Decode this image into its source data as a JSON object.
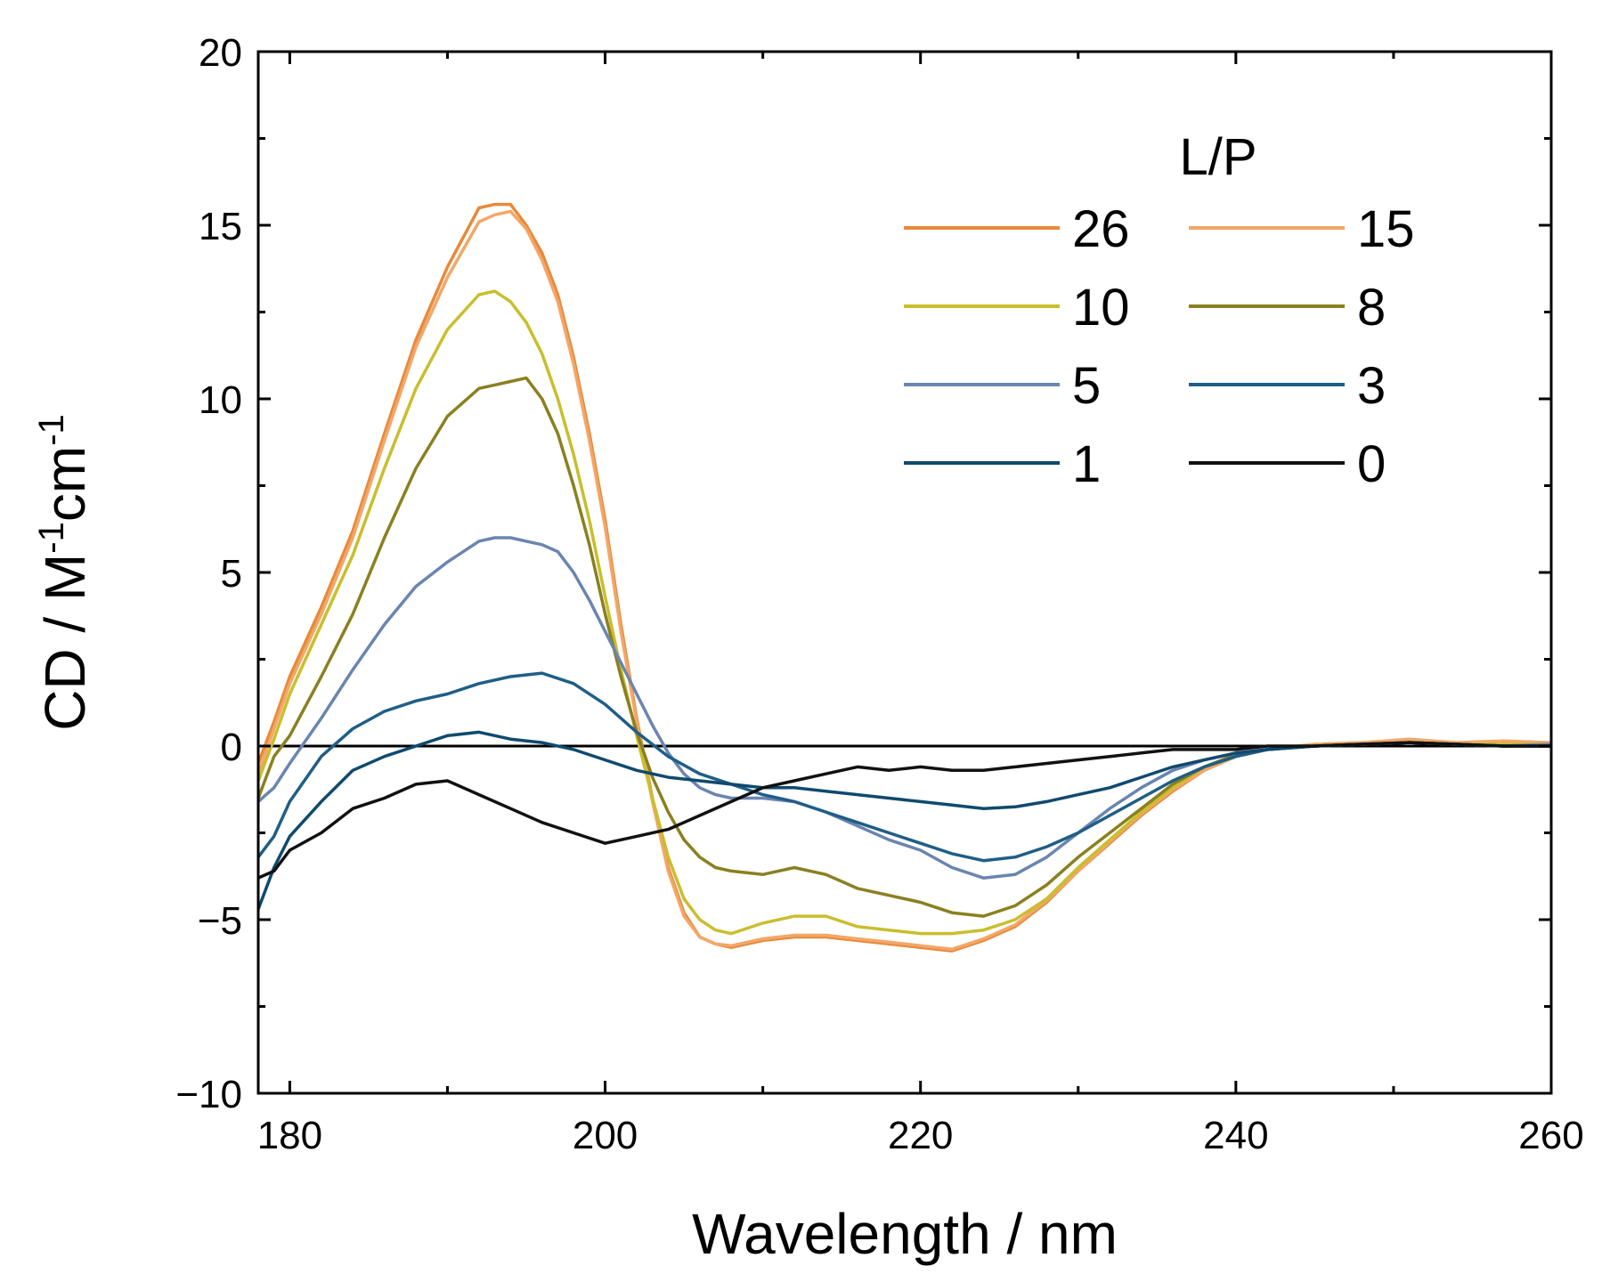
{
  "chart_data": {
    "type": "line",
    "title": "",
    "xlabel": "Wavelength / nm",
    "ylabel": {
      "main": "CD / M",
      "sup1": "-1",
      "mid": "cm",
      "sup2": "-1"
    },
    "xlim": [
      178,
      260
    ],
    "ylim": [
      -10,
      20
    ],
    "xticks": [
      180,
      200,
      220,
      240,
      260
    ],
    "yticks": [
      -10,
      -5,
      0,
      5,
      10,
      15,
      20
    ],
    "ytick_labels": [
      "−10",
      "−5",
      "0",
      "5",
      "10",
      "15",
      "20"
    ],
    "zero_line": true,
    "legend": {
      "title": "L/P",
      "position": "top-right",
      "columns": 2
    },
    "series": [
      {
        "name": "26",
        "color": "#E8893A",
        "x": [
          178,
          179,
          180,
          182,
          184,
          186,
          188,
          190,
          192,
          193,
          194,
          195,
          196,
          197,
          198,
          199,
          200,
          201,
          202,
          203,
          204,
          205,
          206,
          207,
          208,
          210,
          212,
          214,
          216,
          218,
          220,
          222,
          224,
          226,
          228,
          230,
          232,
          234,
          236,
          238,
          240,
          242,
          245,
          248,
          251,
          254,
          257,
          260
        ],
        "y": [
          -0.5,
          0.7,
          2.0,
          4.0,
          6.2,
          9.0,
          11.7,
          13.8,
          15.5,
          15.6,
          15.6,
          15.0,
          14.2,
          13.0,
          11.2,
          9.0,
          6.5,
          3.5,
          0.8,
          -1.5,
          -3.5,
          -4.8,
          -5.5,
          -5.7,
          -5.8,
          -5.6,
          -5.5,
          -5.5,
          -5.6,
          -5.7,
          -5.8,
          -5.9,
          -5.6,
          -5.2,
          -4.5,
          -3.6,
          -2.8,
          -2.0,
          -1.3,
          -0.7,
          -0.3,
          -0.1,
          0.05,
          0.1,
          0.15,
          0.1,
          0.1,
          0.1
        ]
      },
      {
        "name": "15",
        "color": "#F2A768",
        "x": [
          178,
          179,
          180,
          182,
          184,
          186,
          188,
          190,
          192,
          193,
          194,
          195,
          196,
          197,
          198,
          199,
          200,
          201,
          202,
          203,
          204,
          205,
          206,
          207,
          208,
          210,
          212,
          214,
          216,
          218,
          220,
          222,
          224,
          226,
          228,
          230,
          232,
          234,
          236,
          238,
          240,
          242,
          245,
          248,
          251,
          254,
          257,
          260
        ],
        "y": [
          -0.8,
          0.5,
          1.8,
          3.8,
          6.0,
          8.8,
          11.5,
          13.5,
          15.1,
          15.3,
          15.4,
          14.9,
          14.0,
          12.8,
          11.0,
          8.8,
          6.3,
          3.3,
          0.7,
          -1.6,
          -3.6,
          -4.9,
          -5.5,
          -5.7,
          -5.75,
          -5.55,
          -5.45,
          -5.45,
          -5.55,
          -5.65,
          -5.75,
          -5.85,
          -5.55,
          -5.15,
          -4.45,
          -3.6,
          -2.75,
          -1.95,
          -1.25,
          -0.7,
          -0.3,
          -0.1,
          0.05,
          0.1,
          0.2,
          0.1,
          0.15,
          0.1
        ]
      },
      {
        "name": "10",
        "color": "#C9BE2E",
        "x": [
          178,
          179,
          180,
          182,
          184,
          186,
          188,
          190,
          192,
          193,
          194,
          195,
          196,
          197,
          198,
          199,
          200,
          201,
          202,
          203,
          204,
          205,
          206,
          207,
          208,
          210,
          212,
          214,
          216,
          218,
          220,
          222,
          224,
          226,
          228,
          230,
          232,
          234,
          236,
          238,
          240,
          242,
          245,
          248,
          251,
          254,
          257,
          260
        ],
        "y": [
          -1.0,
          0.2,
          1.5,
          3.5,
          5.5,
          8.0,
          10.3,
          12.0,
          13.0,
          13.1,
          12.8,
          12.2,
          11.3,
          10.0,
          8.4,
          6.5,
          4.3,
          2.2,
          0.3,
          -1.5,
          -3.2,
          -4.4,
          -5.0,
          -5.3,
          -5.4,
          -5.1,
          -4.9,
          -4.9,
          -5.2,
          -5.3,
          -5.4,
          -5.4,
          -5.3,
          -5.0,
          -4.4,
          -3.5,
          -2.7,
          -1.9,
          -1.2,
          -0.6,
          -0.25,
          -0.1,
          0.0,
          0.05,
          0.1,
          0.05,
          0.05,
          0.05
        ]
      },
      {
        "name": "8",
        "color": "#8A8020",
        "x": [
          178,
          179,
          180,
          182,
          184,
          186,
          188,
          190,
          192,
          193,
          194,
          195,
          196,
          197,
          198,
          199,
          200,
          201,
          202,
          203,
          204,
          205,
          206,
          207,
          208,
          210,
          212,
          214,
          216,
          218,
          220,
          222,
          224,
          226,
          228,
          230,
          232,
          234,
          236,
          238,
          240,
          242,
          245,
          248,
          251,
          254,
          257,
          260
        ],
        "y": [
          -1.5,
          -0.3,
          0.3,
          2.0,
          3.8,
          6.0,
          8.0,
          9.5,
          10.3,
          10.4,
          10.5,
          10.6,
          10.0,
          9.0,
          7.5,
          5.8,
          3.8,
          2.0,
          0.4,
          -0.9,
          -1.9,
          -2.7,
          -3.2,
          -3.5,
          -3.6,
          -3.7,
          -3.5,
          -3.7,
          -4.1,
          -4.3,
          -4.5,
          -4.8,
          -4.9,
          -4.6,
          -4.0,
          -3.2,
          -2.5,
          -1.8,
          -1.1,
          -0.6,
          -0.25,
          -0.1,
          0.0,
          0.05,
          0.1,
          0.05,
          0.0,
          0.05
        ]
      },
      {
        "name": "5",
        "color": "#6A85B0",
        "x": [
          178,
          179,
          180,
          182,
          184,
          186,
          188,
          190,
          192,
          193,
          194,
          195,
          196,
          197,
          198,
          199,
          200,
          201,
          202,
          203,
          204,
          205,
          206,
          207,
          208,
          210,
          212,
          214,
          216,
          218,
          220,
          222,
          224,
          226,
          228,
          230,
          232,
          234,
          236,
          238,
          240,
          242,
          245,
          248,
          251,
          254,
          257,
          260
        ],
        "y": [
          -1.6,
          -1.2,
          -0.5,
          0.8,
          2.2,
          3.5,
          4.6,
          5.3,
          5.9,
          6.0,
          6.0,
          5.9,
          5.8,
          5.6,
          5.0,
          4.2,
          3.3,
          2.4,
          1.5,
          0.6,
          -0.2,
          -0.8,
          -1.2,
          -1.4,
          -1.5,
          -1.5,
          -1.6,
          -1.9,
          -2.3,
          -2.7,
          -3.0,
          -3.5,
          -3.8,
          -3.7,
          -3.2,
          -2.5,
          -1.8,
          -1.2,
          -0.7,
          -0.4,
          -0.2,
          -0.1,
          0.0,
          0.05,
          0.1,
          0.05,
          0.0,
          0.05
        ]
      },
      {
        "name": "3",
        "color": "#1F5E86",
        "x": [
          178,
          179,
          180,
          182,
          184,
          186,
          188,
          190,
          192,
          194,
          196,
          198,
          200,
          202,
          204,
          206,
          208,
          210,
          212,
          214,
          216,
          218,
          220,
          222,
          224,
          226,
          228,
          230,
          232,
          234,
          236,
          238,
          240,
          242,
          245,
          248,
          251,
          254,
          257,
          260
        ],
        "y": [
          -3.2,
          -2.6,
          -1.6,
          -0.3,
          0.5,
          1.0,
          1.3,
          1.5,
          1.8,
          2.0,
          2.1,
          1.8,
          1.2,
          0.4,
          -0.3,
          -0.8,
          -1.1,
          -1.4,
          -1.6,
          -1.9,
          -2.2,
          -2.5,
          -2.8,
          -3.1,
          -3.3,
          -3.2,
          -2.9,
          -2.5,
          -2.0,
          -1.5,
          -1.0,
          -0.6,
          -0.3,
          -0.1,
          0.0,
          0.05,
          0.1,
          0.05,
          0.0,
          0.0
        ]
      },
      {
        "name": "1",
        "color": "#0F4A6E",
        "x": [
          178,
          179,
          180,
          182,
          184,
          186,
          188,
          190,
          192,
          194,
          196,
          198,
          200,
          202,
          204,
          206,
          208,
          210,
          212,
          214,
          216,
          218,
          220,
          222,
          224,
          226,
          228,
          230,
          232,
          234,
          236,
          238,
          240,
          242,
          245,
          248,
          251,
          254,
          257,
          260
        ],
        "y": [
          -4.7,
          -3.5,
          -2.6,
          -1.6,
          -0.7,
          -0.3,
          0.0,
          0.3,
          0.4,
          0.2,
          0.1,
          -0.1,
          -0.4,
          -0.7,
          -0.9,
          -1.0,
          -1.1,
          -1.2,
          -1.2,
          -1.3,
          -1.4,
          -1.5,
          -1.6,
          -1.7,
          -1.8,
          -1.75,
          -1.6,
          -1.4,
          -1.2,
          -0.9,
          -0.6,
          -0.4,
          -0.2,
          -0.1,
          0.0,
          0.05,
          0.1,
          0.05,
          0.0,
          0.0
        ]
      },
      {
        "name": "0",
        "color": "#111111",
        "x": [
          178,
          179,
          180,
          182,
          184,
          186,
          188,
          190,
          192,
          194,
          196,
          198,
          200,
          202,
          204,
          206,
          208,
          210,
          212,
          214,
          216,
          218,
          220,
          222,
          224,
          226,
          228,
          230,
          232,
          234,
          236,
          238,
          240,
          242,
          245,
          248,
          251,
          254,
          257,
          260
        ],
        "y": [
          -3.8,
          -3.6,
          -3.0,
          -2.5,
          -1.8,
          -1.5,
          -1.1,
          -1.0,
          -1.4,
          -1.8,
          -2.2,
          -2.5,
          -2.8,
          -2.6,
          -2.4,
          -2.0,
          -1.6,
          -1.2,
          -1.0,
          -0.8,
          -0.6,
          -0.7,
          -0.6,
          -0.7,
          -0.7,
          -0.6,
          -0.5,
          -0.4,
          -0.3,
          -0.2,
          -0.1,
          -0.1,
          -0.1,
          0.0,
          0.0,
          0.05,
          0.1,
          0.05,
          0.0,
          0.0
        ]
      }
    ]
  }
}
